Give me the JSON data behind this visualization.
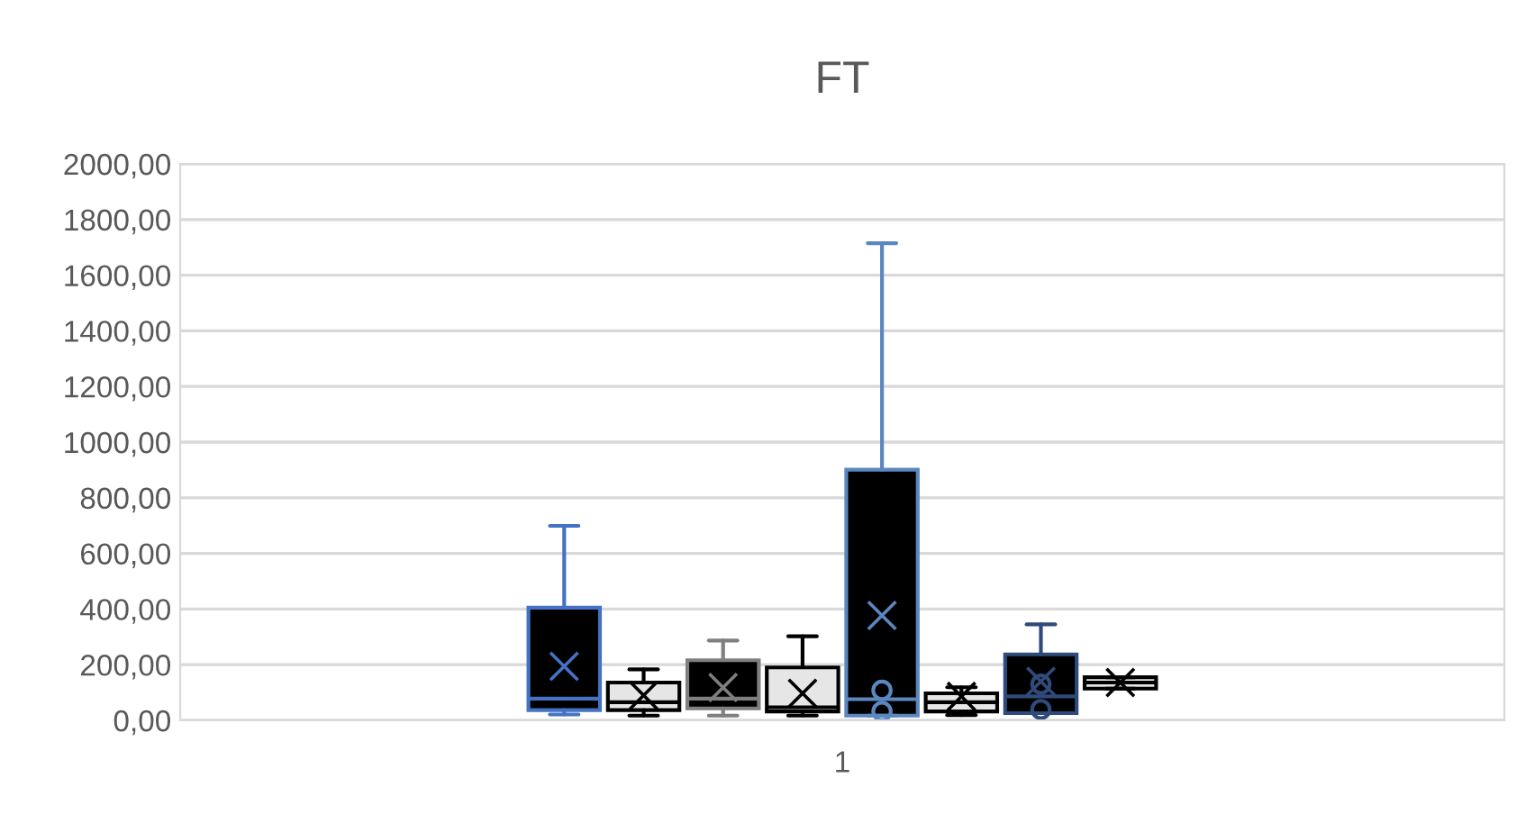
{
  "chart_data": {
    "type": "box",
    "title": "FT",
    "categories": [
      "1"
    ],
    "ylim": [
      0,
      2000
    ],
    "yticks": [
      {
        "value": 0,
        "label": "0,00"
      },
      {
        "value": 200,
        "label": "200,00"
      },
      {
        "value": 400,
        "label": "400,00"
      },
      {
        "value": 600,
        "label": "600,00"
      },
      {
        "value": 800,
        "label": "800,00"
      },
      {
        "value": 1000,
        "label": "1000,00"
      },
      {
        "value": 1200,
        "label": "1200,00"
      },
      {
        "value": 1400,
        "label": "1400,00"
      },
      {
        "value": 1600,
        "label": "1600,00"
      },
      {
        "value": 1800,
        "label": "1800,00"
      },
      {
        "value": 2000,
        "label": "2000,00"
      }
    ],
    "grid": "y",
    "legend": false,
    "series": [
      {
        "color": "#4472c4",
        "colors": [
          "#000000"
        ],
        "boxes": [
          {
            "low": 21,
            "q1": 37,
            "median": 78,
            "q3": 405,
            "high": 699,
            "mean": 194
          }
        ]
      },
      {
        "color": "#000000",
        "colors": [
          "#e7e6e6"
        ],
        "boxes": [
          {
            "low": 17,
            "q1": 37,
            "median": 65,
            "q3": 136,
            "high": 183,
            "mean": 90
          }
        ]
      },
      {
        "color": "#7f7f7f",
        "colors": [
          "#000000"
        ],
        "boxes": [
          {
            "low": 17,
            "q1": 43,
            "median": 78,
            "q3": 216,
            "high": 287,
            "mean": 118
          }
        ]
      },
      {
        "color": "#000000",
        "colors": [
          "#e7e6e6"
        ],
        "boxes": [
          {
            "low": 17,
            "q1": 32,
            "median": 47,
            "q3": 190,
            "high": 302,
            "mean": 97
          }
        ]
      },
      {
        "color": "#5b87c0",
        "colors": [
          "#000000"
        ],
        "boxes": [
          {
            "low": 17,
            "q1": 17,
            "median": 76,
            "q3": 901,
            "high": 1715,
            "mean": 377,
            "outliers": [
              32,
              108
            ]
          }
        ]
      },
      {
        "color": "#000000",
        "colors": [
          "#e7e6e6"
        ],
        "boxes": [
          {
            "low": 19,
            "q1": 32,
            "median": 65,
            "q3": 97,
            "high": 119,
            "mean": 86
          }
        ]
      },
      {
        "color": "#2f4b7c",
        "colors": [
          "#000000"
        ],
        "boxes": [
          {
            "low": 26,
            "q1": 26,
            "median": 86,
            "q3": 237,
            "high": 345,
            "mean": 140,
            "outliers": [
              39,
              130
            ]
          }
        ]
      },
      {
        "color": "#000000",
        "colors": [
          "#e7e6e6"
        ],
        "boxes": [
          {
            "low": 114,
            "q1": 114,
            "median": 136,
            "q3": 155,
            "high": 155,
            "mean": 136
          }
        ]
      }
    ]
  }
}
